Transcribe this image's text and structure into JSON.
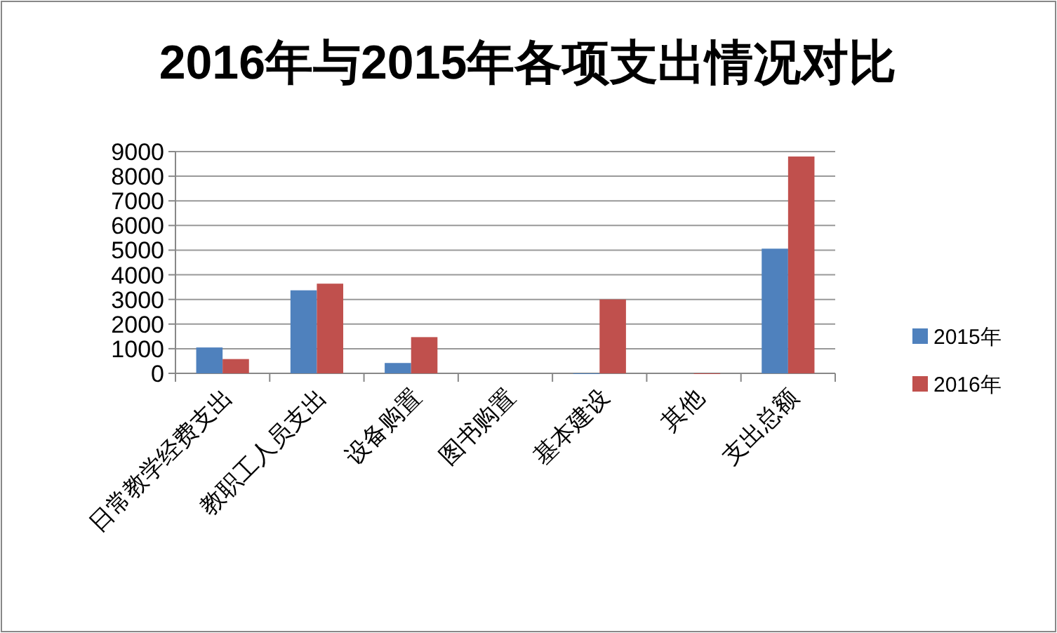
{
  "chart_data": {
    "type": "bar",
    "title": "2016年与2015年各项支出情况对比",
    "categories": [
      "日常教学经费支出",
      "教职工人员支出",
      "设备购置",
      "图书购置",
      "基本建设",
      "其他",
      "支出总额"
    ],
    "series": [
      {
        "name": "2015年",
        "color": "#4f81bd",
        "values": [
          1050,
          3370,
          420,
          null,
          0,
          null,
          5060
        ]
      },
      {
        "name": "2016年",
        "color": "#c0504d",
        "values": [
          580,
          3640,
          1470,
          null,
          3000,
          0,
          8800
        ]
      }
    ],
    "ylim": [
      0,
      9000
    ],
    "yticks": [
      0,
      1000,
      2000,
      3000,
      4000,
      5000,
      6000,
      7000,
      8000,
      9000
    ],
    "grid": "y",
    "legend": "right"
  }
}
